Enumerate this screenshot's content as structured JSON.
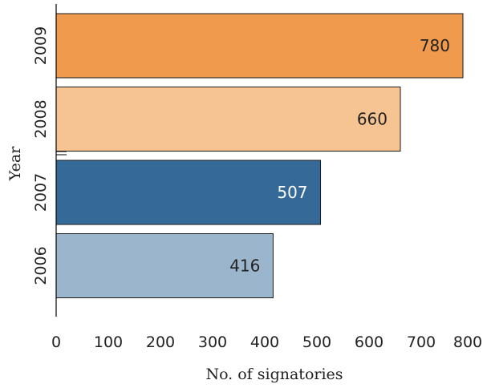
{
  "chart_data": {
    "type": "bar",
    "orientation": "horizontal",
    "title": "",
    "xlabel": "No. of signatories",
    "ylabel": "Year",
    "xlim": [
      0,
      800
    ],
    "x_ticks": [
      0,
      100,
      200,
      300,
      400,
      500,
      600,
      700,
      800
    ],
    "categories": [
      "2009",
      "2008",
      "2007",
      "2006"
    ],
    "values": [
      780,
      660,
      507,
      416
    ],
    "data_labels": [
      "780",
      "660",
      "507",
      "416"
    ],
    "bar_colors": [
      "#ef9a4c",
      "#f6c393",
      "#356a98",
      "#9bb5cc"
    ],
    "label_colors": [
      "#222222",
      "#222222",
      "#ffffff",
      "#222222"
    ],
    "grid": false,
    "legend": "none"
  }
}
